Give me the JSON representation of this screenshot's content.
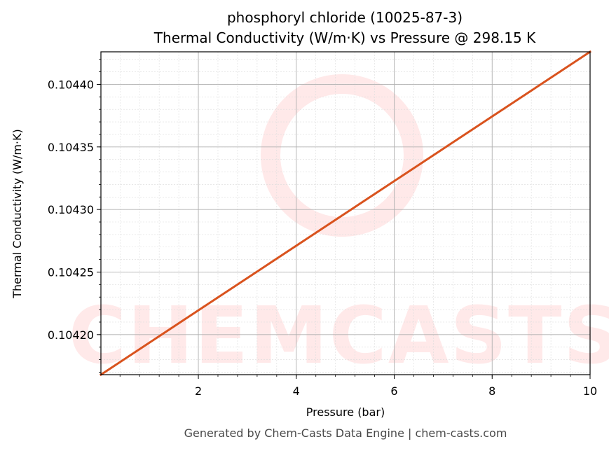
{
  "chart_data": {
    "type": "line",
    "title": "phosphoryl chloride (10025-87-3)",
    "subtitle": "Thermal Conductivity (W/m·K) vs Pressure @ 298.15 K",
    "xlabel": "Pressure (bar)",
    "ylabel": "Thermal Conductivity (W/m·K)",
    "xlim": [
      0.01,
      10
    ],
    "ylim": [
      0.104168,
      0.104426
    ],
    "x_ticks": [
      2,
      4,
      6,
      8,
      10
    ],
    "x_tick_labels": [
      "2",
      "4",
      "6",
      "8",
      "10"
    ],
    "y_ticks": [
      0.1042,
      0.10425,
      0.1043,
      0.10435,
      0.1044
    ],
    "y_tick_labels": [
      "0.10420",
      "0.10425",
      "0.10430",
      "0.10435",
      "0.10440"
    ],
    "grid": true,
    "series": [
      {
        "color": "#d9531e",
        "x": [
          0.01,
          10
        ],
        "y": [
          0.104168,
          0.104426
        ]
      }
    ]
  },
  "watermark": {
    "text": "CHEMCASTS",
    "color": "#ffe9e9"
  },
  "footer": "Generated by Chem-Casts Data Engine | chem-casts.com"
}
